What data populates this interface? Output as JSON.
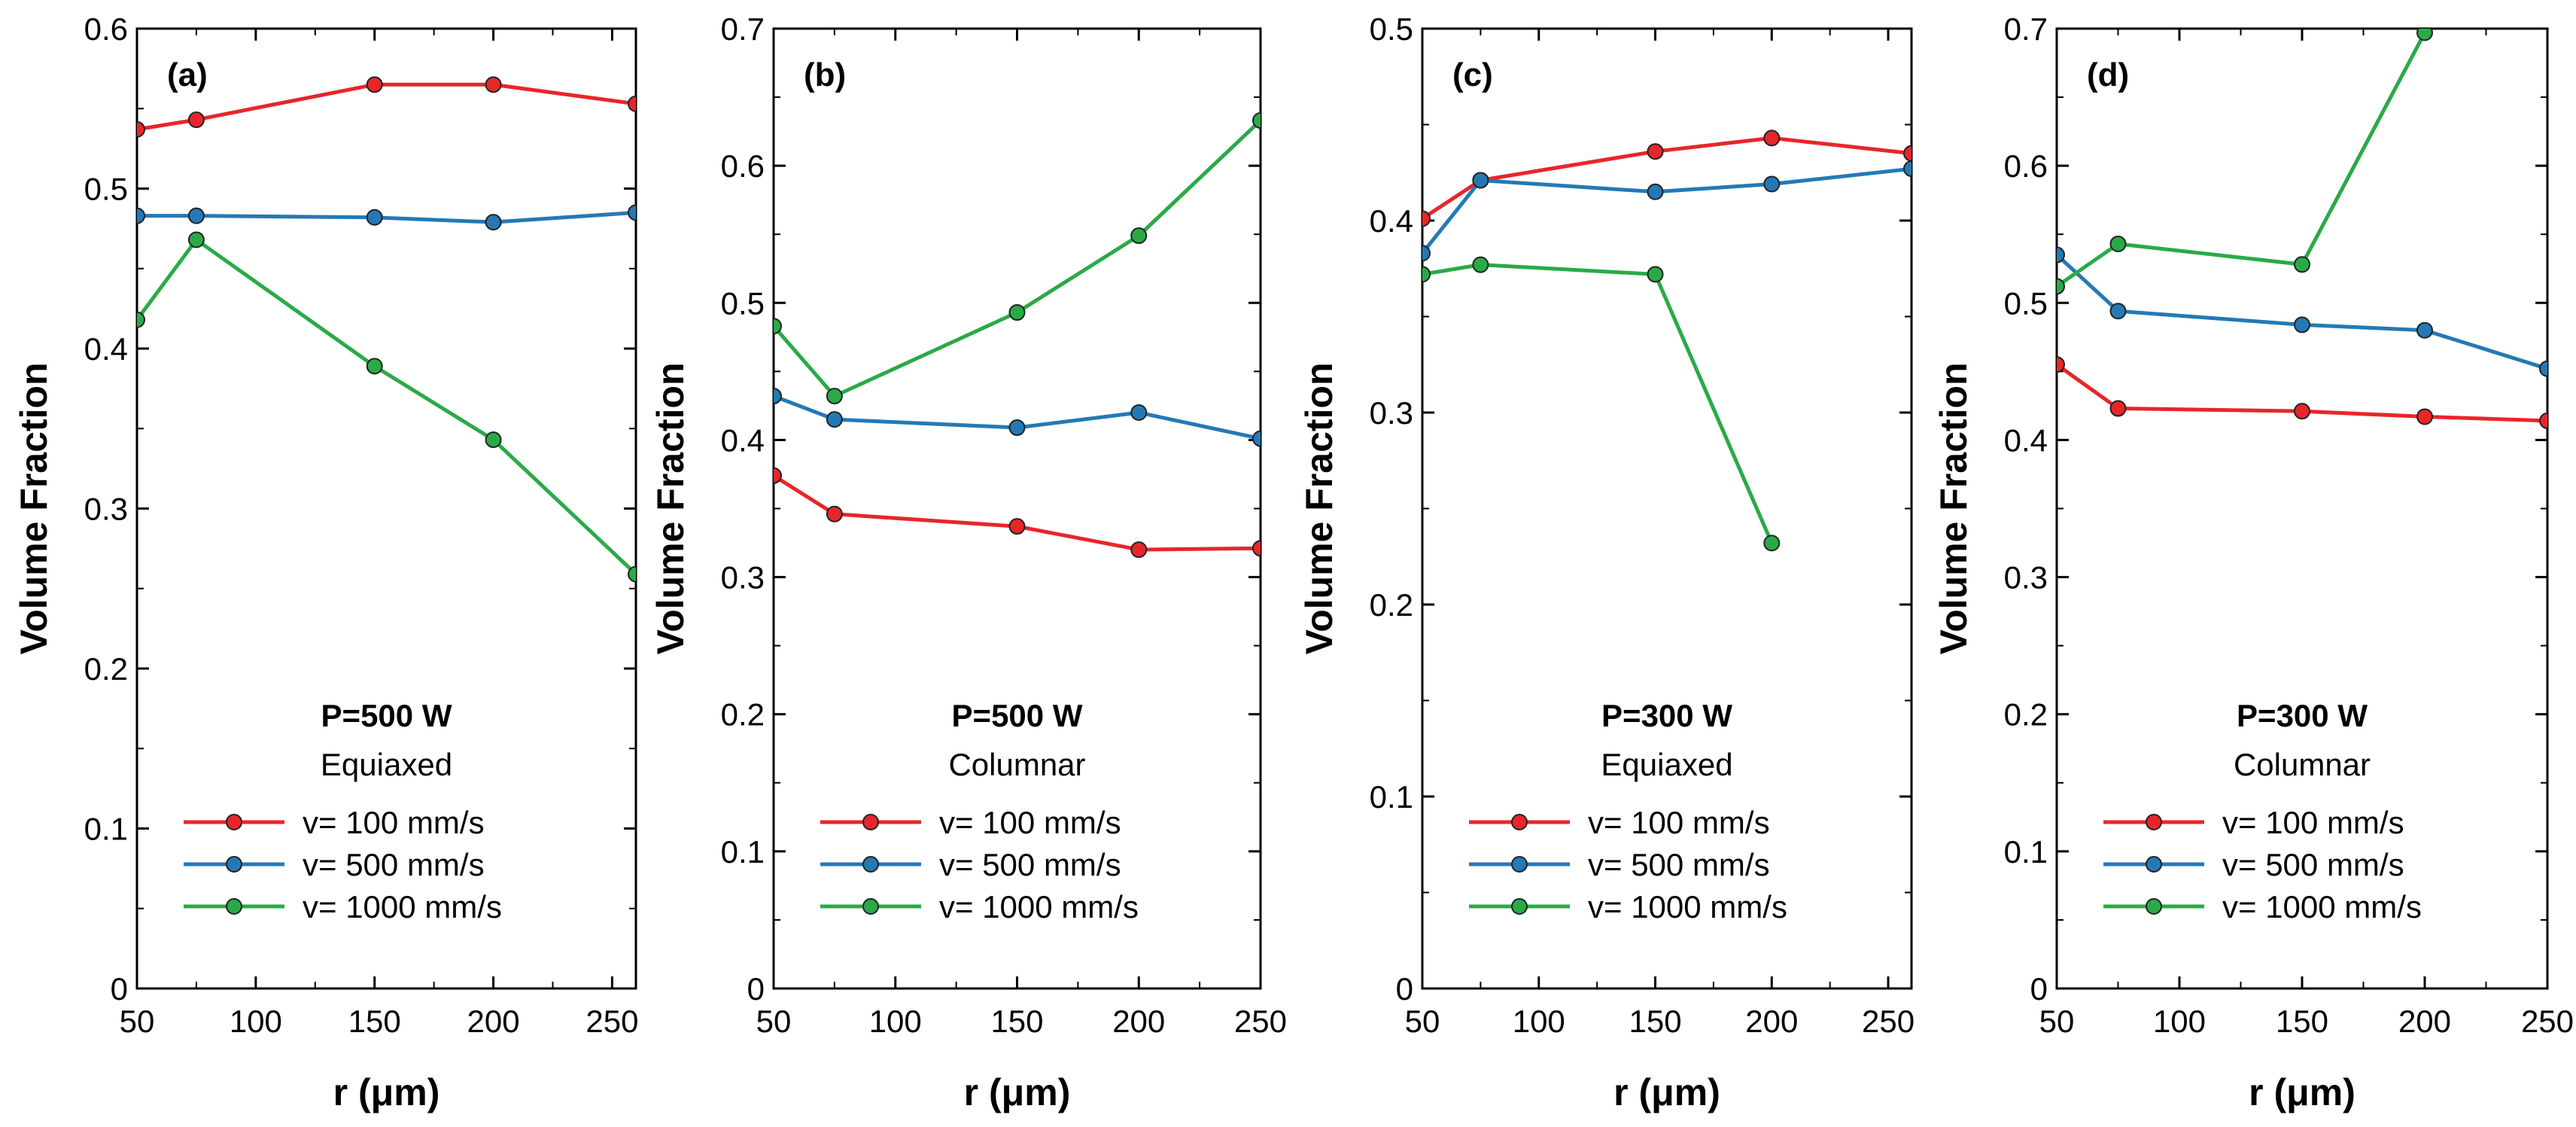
{
  "colors": {
    "v100": "#e8262a",
    "v500": "#2479b5",
    "v1000": "#2aaa47"
  },
  "chart_data": [
    {
      "type": "line",
      "panel_label": "(a)",
      "title": "P=500 W",
      "subtitle": "Equiaxed",
      "xlabel": "r (μm)",
      "ylabel": "Volume Fraction",
      "xlim": [
        50,
        260
      ],
      "ylim": [
        0,
        0.6
      ],
      "xticks": [
        50,
        100,
        150,
        200,
        250
      ],
      "xtick_labels": [
        "50",
        "100",
        "150",
        "200",
        "250"
      ],
      "yticks": [
        0,
        0.1,
        0.2,
        0.3,
        0.4,
        0.5,
        0.6
      ],
      "ytick_labels": [
        "0",
        "0.1",
        "0.2",
        "0.3",
        "0.4",
        "0.5",
        "0.6"
      ],
      "legend_location": "lower-center",
      "series": [
        {
          "name": "v= 100 mm/s",
          "color_key": "v100",
          "x": [
            50,
            75,
            150,
            200,
            260
          ],
          "y": [
            0.537,
            0.543,
            0.565,
            0.565,
            0.553
          ]
        },
        {
          "name": "v= 500 mm/s",
          "color_key": "v500",
          "x": [
            50,
            75,
            150,
            200,
            260
          ],
          "y": [
            0.483,
            0.483,
            0.482,
            0.479,
            0.485
          ]
        },
        {
          "name": "v= 1000 mm/s",
          "color_key": "v1000",
          "x": [
            50,
            75,
            150,
            200,
            260
          ],
          "y": [
            0.418,
            0.468,
            0.389,
            0.343,
            0.259
          ]
        }
      ]
    },
    {
      "type": "line",
      "panel_label": "(b)",
      "title": "P=500 W",
      "subtitle": "Columnar",
      "xlabel": "r (μm)",
      "ylabel": "Volume Fraction",
      "xlim": [
        50,
        250
      ],
      "ylim": [
        0,
        0.7
      ],
      "xticks": [
        50,
        100,
        150,
        200,
        250
      ],
      "xtick_labels": [
        "50",
        "100",
        "150",
        "200",
        "250"
      ],
      "yticks": [
        0,
        0.1,
        0.2,
        0.3,
        0.4,
        0.5,
        0.6,
        0.7
      ],
      "ytick_labels": [
        "0",
        "0.1",
        "0.2",
        "0.3",
        "0.4",
        "0.5",
        "0.6",
        "0.7"
      ],
      "legend_location": "lower-center",
      "series": [
        {
          "name": "v= 100 mm/s",
          "color_key": "v100",
          "x": [
            50,
            75,
            150,
            200,
            250
          ],
          "y": [
            0.374,
            0.346,
            0.337,
            0.32,
            0.321
          ]
        },
        {
          "name": "v= 500 mm/s",
          "color_key": "v500",
          "x": [
            50,
            75,
            150,
            200,
            250
          ],
          "y": [
            0.432,
            0.415,
            0.409,
            0.42,
            0.401
          ]
        },
        {
          "name": "v= 1000 mm/s",
          "color_key": "v1000",
          "x": [
            50,
            75,
            150,
            200,
            250
          ],
          "y": [
            0.483,
            0.432,
            0.493,
            0.549,
            0.633
          ]
        }
      ]
    },
    {
      "type": "line",
      "panel_label": "(c)",
      "title": "P=300 W",
      "subtitle": "Equiaxed",
      "xlabel": "r (μm)",
      "ylabel": "Volume Fraction",
      "xlim": [
        50,
        260
      ],
      "ylim": [
        0,
        0.5
      ],
      "xticks": [
        50,
        100,
        150,
        200,
        250
      ],
      "xtick_labels": [
        "50",
        "100",
        "150",
        "200",
        "250"
      ],
      "yticks": [
        0,
        0.1,
        0.2,
        0.3,
        0.4,
        0.5
      ],
      "ytick_labels": [
        "0",
        "0.1",
        "0.2",
        "0.3",
        "0.4",
        "0.5"
      ],
      "legend_location": "lower-center",
      "series": [
        {
          "name": "v= 100 mm/s",
          "color_key": "v100",
          "x": [
            50,
            75,
            150,
            200,
            260
          ],
          "y": [
            0.401,
            0.421,
            0.436,
            0.443,
            0.435
          ]
        },
        {
          "name": "v= 500 mm/s",
          "color_key": "v500",
          "x": [
            50,
            75,
            150,
            200,
            260
          ],
          "y": [
            0.383,
            0.421,
            0.415,
            0.419,
            0.427
          ]
        },
        {
          "name": "v= 1000 mm/s",
          "color_key": "v1000",
          "x": [
            50,
            75,
            150,
            200
          ],
          "y": [
            0.372,
            0.377,
            0.372,
            0.232
          ]
        }
      ]
    },
    {
      "type": "line",
      "panel_label": "(d)",
      "title": "P=300 W",
      "subtitle": "Columnar",
      "xlabel": "r (μm)",
      "ylabel": "Volume Fraction",
      "xlim": [
        50,
        250
      ],
      "ylim": [
        0,
        0.7
      ],
      "xticks": [
        50,
        100,
        150,
        200,
        250
      ],
      "xtick_labels": [
        "50",
        "100",
        "150",
        "200",
        "250"
      ],
      "yticks": [
        0,
        0.1,
        0.2,
        0.3,
        0.4,
        0.5,
        0.6,
        0.7
      ],
      "ytick_labels": [
        "0",
        "0.1",
        "0.2",
        "0.3",
        "0.4",
        "0.5",
        "0.6",
        "0.7"
      ],
      "legend_location": "lower-center",
      "series": [
        {
          "name": "v= 100 mm/s",
          "color_key": "v100",
          "x": [
            50,
            75,
            150,
            200,
            250
          ],
          "y": [
            0.455,
            0.423,
            0.421,
            0.417,
            0.414
          ]
        },
        {
          "name": "v= 500 mm/s",
          "color_key": "v500",
          "x": [
            50,
            75,
            150,
            200,
            250
          ],
          "y": [
            0.535,
            0.494,
            0.484,
            0.48,
            0.452
          ]
        },
        {
          "name": "v= 1000 mm/s",
          "color_key": "v1000",
          "x": [
            50,
            75,
            150,
            200
          ],
          "y": [
            0.512,
            0.543,
            0.528,
            0.697
          ]
        }
      ]
    }
  ]
}
